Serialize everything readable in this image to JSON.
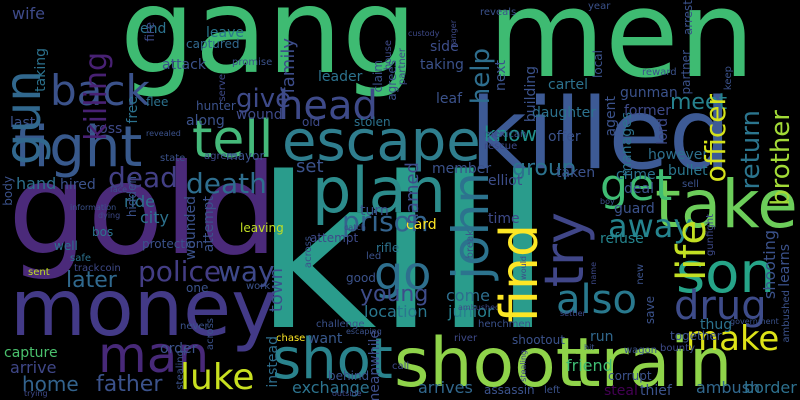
{
  "wordcloud": {
    "background": "#000000",
    "words": [
      {
        "text": "gang",
        "color": "#3ebb72"
      },
      {
        "text": "men",
        "color": "#3ebb72"
      },
      {
        "text": "kill",
        "color": "#2a9c8c"
      },
      {
        "text": "gold",
        "color": "#4b2a7a"
      },
      {
        "text": "killed",
        "color": "#3d5a95"
      },
      {
        "text": "shoot",
        "color": "#8fd34a"
      },
      {
        "text": "train",
        "color": "#8fd34a"
      },
      {
        "text": "money",
        "color": "#433a87"
      },
      {
        "text": "escape",
        "color": "#2f7e8e"
      },
      {
        "text": "take",
        "color": "#6ccd5a"
      },
      {
        "text": "fight",
        "color": "#38598c"
      },
      {
        "text": "tell",
        "color": "#45b97a"
      },
      {
        "text": "plan",
        "color": "#2c8c8c"
      },
      {
        "text": "shot",
        "color": "#2a838d"
      },
      {
        "text": "son",
        "color": "#26a488"
      },
      {
        "text": "man",
        "color": "#482979"
      },
      {
        "text": "head",
        "color": "#3e4a89"
      },
      {
        "text": "gun",
        "color": "#31688e"
      },
      {
        "text": "back",
        "color": "#3b528b"
      },
      {
        "text": "john",
        "color": "#2c738e"
      },
      {
        "text": "find",
        "color": "#fde725"
      },
      {
        "text": "try",
        "color": "#404688"
      },
      {
        "text": "get",
        "color": "#3fbc73"
      },
      {
        "text": "life",
        "color": "#c2df23"
      },
      {
        "text": "drug",
        "color": "#3e4c8a"
      },
      {
        "text": "also",
        "color": "#29798e"
      },
      {
        "text": "luke",
        "color": "#c8e020"
      },
      {
        "text": "make",
        "color": "#dde318"
      },
      {
        "text": "go",
        "color": "#2e6f8e"
      },
      {
        "text": "police",
        "color": "#433d84"
      },
      {
        "text": "killing",
        "color": "#482173"
      },
      {
        "text": "help",
        "color": "#2e6e8e"
      },
      {
        "text": "death",
        "color": "#2e6e8e"
      },
      {
        "text": "dead",
        "color": "#423f85"
      },
      {
        "text": "prison",
        "color": "#33638d"
      },
      {
        "text": "way",
        "color": "#3e4989"
      },
      {
        "text": "later",
        "color": "#30698e"
      },
      {
        "text": "away",
        "color": "#25848e"
      },
      {
        "text": "give",
        "color": "#3e4a89"
      },
      {
        "text": "father",
        "color": "#3b528b"
      },
      {
        "text": "young",
        "color": "#3e4c8a"
      },
      {
        "text": "know",
        "color": "#21908d"
      },
      {
        "text": "group",
        "color": "#2c728e"
      },
      {
        "text": "meet",
        "color": "#26828e"
      },
      {
        "text": "officer",
        "color": "#d5e21a"
      },
      {
        "text": "brother",
        "color": "#a2da37"
      },
      {
        "text": "return",
        "color": "#2b758e"
      },
      {
        "text": "town",
        "color": "#33638d"
      },
      {
        "text": "family",
        "color": "#3d4d8a"
      },
      {
        "text": "home",
        "color": "#3e4c8a"
      },
      {
        "text": "named",
        "color": "#3b528b"
      },
      {
        "text": "capture",
        "color": "#4ac16d"
      },
      {
        "text": "arrive",
        "color": "#3f4788"
      },
      {
        "text": "come",
        "color": "#2e6e8e"
      },
      {
        "text": "location",
        "color": "#2a778e"
      },
      {
        "text": "junior",
        "color": "#27808e"
      },
      {
        "text": "want",
        "color": "#38588c"
      },
      {
        "text": "exchange",
        "color": "#2c738e"
      },
      {
        "text": "instead",
        "color": "#2e6f8e"
      },
      {
        "text": "friend",
        "color": "#3fbc73"
      },
      {
        "text": "thug",
        "color": "#2c738e"
      },
      {
        "text": "run",
        "color": "#31688e"
      },
      {
        "text": "ambush",
        "color": "#31688e"
      },
      {
        "text": "border",
        "color": "#2d718e"
      },
      {
        "text": "steal",
        "color": "#440154"
      },
      {
        "text": "thief",
        "color": "#3b528b"
      },
      {
        "text": "set",
        "color": "#3b528b"
      },
      {
        "text": "guard",
        "color": "#3b528b"
      },
      {
        "text": "refuse",
        "color": "#25858e"
      },
      {
        "text": "ride",
        "color": "#2c728e"
      },
      {
        "text": "city",
        "color": "#2c728e"
      },
      {
        "text": "hand",
        "color": "#2d708e"
      },
      {
        "text": "hired",
        "color": "#3b528b"
      },
      {
        "text": "however",
        "color": "#2d708e"
      },
      {
        "text": "bullet",
        "color": "#2a768e"
      },
      {
        "text": "elliot",
        "color": "#3d4e8a"
      },
      {
        "text": "order",
        "color": "#3b528b"
      },
      {
        "text": "meanwhile",
        "color": "#3d4e8a"
      },
      {
        "text": "arrives",
        "color": "#31688e"
      },
      {
        "text": "shooting",
        "color": "#3b528b"
      },
      {
        "text": "learns",
        "color": "#3b528b"
      },
      {
        "text": "wife",
        "color": "#3e4a89"
      },
      {
        "text": "end",
        "color": "#2c728e"
      },
      {
        "text": "leave",
        "color": "#2a768e"
      },
      {
        "text": "attack",
        "color": "#3b528b"
      },
      {
        "text": "free",
        "color": "#2c728e"
      },
      {
        "text": "along",
        "color": "#3b528b"
      },
      {
        "text": "wound",
        "color": "#3e4a89"
      },
      {
        "text": "cross",
        "color": "#3e4a89"
      },
      {
        "text": "last",
        "color": "#3b528b"
      },
      {
        "text": "taking",
        "color": "#2c728e"
      },
      {
        "text": "leader",
        "color": "#3b528b"
      },
      {
        "text": "leaf",
        "color": "#2c728e"
      },
      {
        "text": "side",
        "color": "#3b528b"
      },
      {
        "text": "next",
        "color": "#3d4e8a"
      },
      {
        "text": "building",
        "color": "#3b528b"
      },
      {
        "text": "cartel",
        "color": "#3b528b"
      },
      {
        "text": "daughter",
        "color": "#2c728e"
      },
      {
        "text": "offer",
        "color": "#2c728e"
      },
      {
        "text": "agent",
        "color": "#3b528b"
      },
      {
        "text": "manages",
        "color": "#3b528b"
      },
      {
        "text": "gunman",
        "color": "#2c728e"
      },
      {
        "text": "former",
        "color": "#3b528b"
      },
      {
        "text": "lord",
        "color": "#3e4a89"
      },
      {
        "text": "crime",
        "color": "#3e4a89"
      },
      {
        "text": "deal",
        "color": "#2c728e"
      },
      {
        "text": "turn",
        "color": "#3b528b"
      },
      {
        "text": "card",
        "color": "#3b528b"
      },
      {
        "text": "time",
        "color": "#fde725"
      },
      {
        "text": "member",
        "color": "#3e4a89"
      },
      {
        "text": "taken",
        "color": "#3b528b"
      },
      {
        "text": "old",
        "color": "#3b528b"
      },
      {
        "text": "stolen",
        "color": "#3e4a89"
      },
      {
        "text": "hunter",
        "color": "#2c728e"
      },
      {
        "text": "flee",
        "color": "#3b528b"
      },
      {
        "text": "fire",
        "color": "#2c728e"
      },
      {
        "text": "captured",
        "color": "#3e4a89"
      },
      {
        "text": "body",
        "color": "#31688e"
      },
      {
        "text": "hidden",
        "color": "#3b528b"
      },
      {
        "text": "wounded",
        "color": "#3b528b"
      },
      {
        "text": "leaving",
        "color": "#3b528b"
      },
      {
        "text": "attempt",
        "color": "#3b528b"
      },
      {
        "text": "good",
        "color": "#c2df23"
      },
      {
        "text": "rifle",
        "color": "#3e4a89"
      },
      {
        "text": "led",
        "color": "#3b528b"
      },
      {
        "text": "bos",
        "color": "#2c728e"
      },
      {
        "text": "protection",
        "color": "#3b528b"
      },
      {
        "text": "well",
        "color": "#2c728e"
      },
      {
        "text": "safe",
        "color": "#3b528b"
      },
      {
        "text": "sent",
        "color": "#2c728e"
      },
      {
        "text": "one",
        "color": "#2c728e"
      },
      {
        "text": "work",
        "color": "#c2df23"
      },
      {
        "text": "track",
        "color": "#3b528b"
      },
      {
        "text": "coin",
        "color": "#3b528b"
      },
      {
        "text": "call",
        "color": "#3e4a89"
      },
      {
        "text": "behind",
        "color": "#3e4a89"
      },
      {
        "text": "shootout",
        "color": "#3e4a89"
      },
      {
        "text": "river",
        "color": "#3b528b"
      },
      {
        "text": "chase",
        "color": "#3b528b"
      },
      {
        "text": "assassin",
        "color": "#3e4a89"
      },
      {
        "text": "left",
        "color": "#fde725"
      },
      {
        "text": "corrupt",
        "color": "#3b528b"
      },
      {
        "text": "together",
        "color": "#3b528b"
      },
      {
        "text": "bounty",
        "color": "#3b528b"
      },
      {
        "text": "wagon",
        "color": "#3b528b"
      },
      {
        "text": "save",
        "color": "#3e4a89"
      },
      {
        "text": "local",
        "color": "#3b528b"
      },
      {
        "text": "year",
        "color": "#3b528b"
      },
      {
        "text": "reveals",
        "color": "#3b528b"
      },
      {
        "text": "partner",
        "color": "#3b528b"
      },
      {
        "text": "house",
        "color": "#3b528b"
      },
      {
        "text": "claim",
        "color": "#3b528b"
      },
      {
        "text": "promise",
        "color": "#3e4a89"
      },
      {
        "text": "serve",
        "color": "#3e4a89"
      },
      {
        "text": "state",
        "color": "#3b528b"
      },
      {
        "text": "agrees",
        "color": "#3b528b"
      },
      {
        "text": "mayor",
        "color": "#3b528b"
      },
      {
        "text": "mexican",
        "color": "#3e4a89"
      },
      {
        "text": "rescue",
        "color": "#3b528b"
      },
      {
        "text": "sell",
        "color": "#3e4a89"
      },
      {
        "text": "gunfight",
        "color": "#3b528b"
      },
      {
        "text": "keep",
        "color": "#3b528b"
      },
      {
        "text": "reward",
        "color": "#3e4a89"
      },
      {
        "text": "arrest",
        "color": "#3b528b"
      },
      {
        "text": "settler",
        "color": "#3e4a89"
      },
      {
        "text": "government",
        "color": "#3b528b"
      },
      {
        "text": "hit",
        "color": "#3b528b"
      },
      {
        "text": "henchmen",
        "color": "#3b528b"
      },
      {
        "text": "ambushed",
        "color": "#3b528b"
      },
      {
        "text": "name",
        "color": "#3e4a89"
      },
      {
        "text": "new",
        "color": "#3b528b"
      },
      {
        "text": "would",
        "color": "#3b528b"
      },
      {
        "text": "break",
        "color": "#3b528b"
      },
      {
        "text": "catch",
        "color": "#3e4a89"
      },
      {
        "text": "escaping",
        "color": "#3e4a89"
      },
      {
        "text": "challenge",
        "color": "#3b528b"
      },
      {
        "text": "outside",
        "color": "#3e4a89"
      },
      {
        "text": "trying",
        "color": "#3b528b"
      },
      {
        "text": "stealing",
        "color": "#3e4a89"
      },
      {
        "text": "across",
        "color": "#3b528b"
      },
      {
        "text": "never",
        "color": "#3e4a89"
      },
      {
        "text": "dying",
        "color": "#3b528b"
      },
      {
        "text": "face",
        "color": "#3b528b"
      },
      {
        "text": "information",
        "color": "#3e4a89"
      },
      {
        "text": "revealed",
        "color": "#3e4a89"
      },
      {
        "text": "custody",
        "color": "#3b528b"
      },
      {
        "text": "ranger",
        "color": "#3b528b"
      },
      {
        "text": "boy",
        "color": "#3b528b"
      },
      {
        "text": "soon",
        "color": "#3e4a89"
      },
      {
        "text": "fl",
        "color": "#3b528b"
      },
      {
        "text": "dy",
        "color": "#3b528b"
      },
      {
        "text": "rival",
        "color": "#3b528b"
      },
      {
        "text": "pay",
        "color": "#3e4a89"
      },
      {
        "text": "warns",
        "color": "#3e4a89"
      },
      {
        "text": "stop",
        "color": "#3b528b"
      }
    ]
  }
}
